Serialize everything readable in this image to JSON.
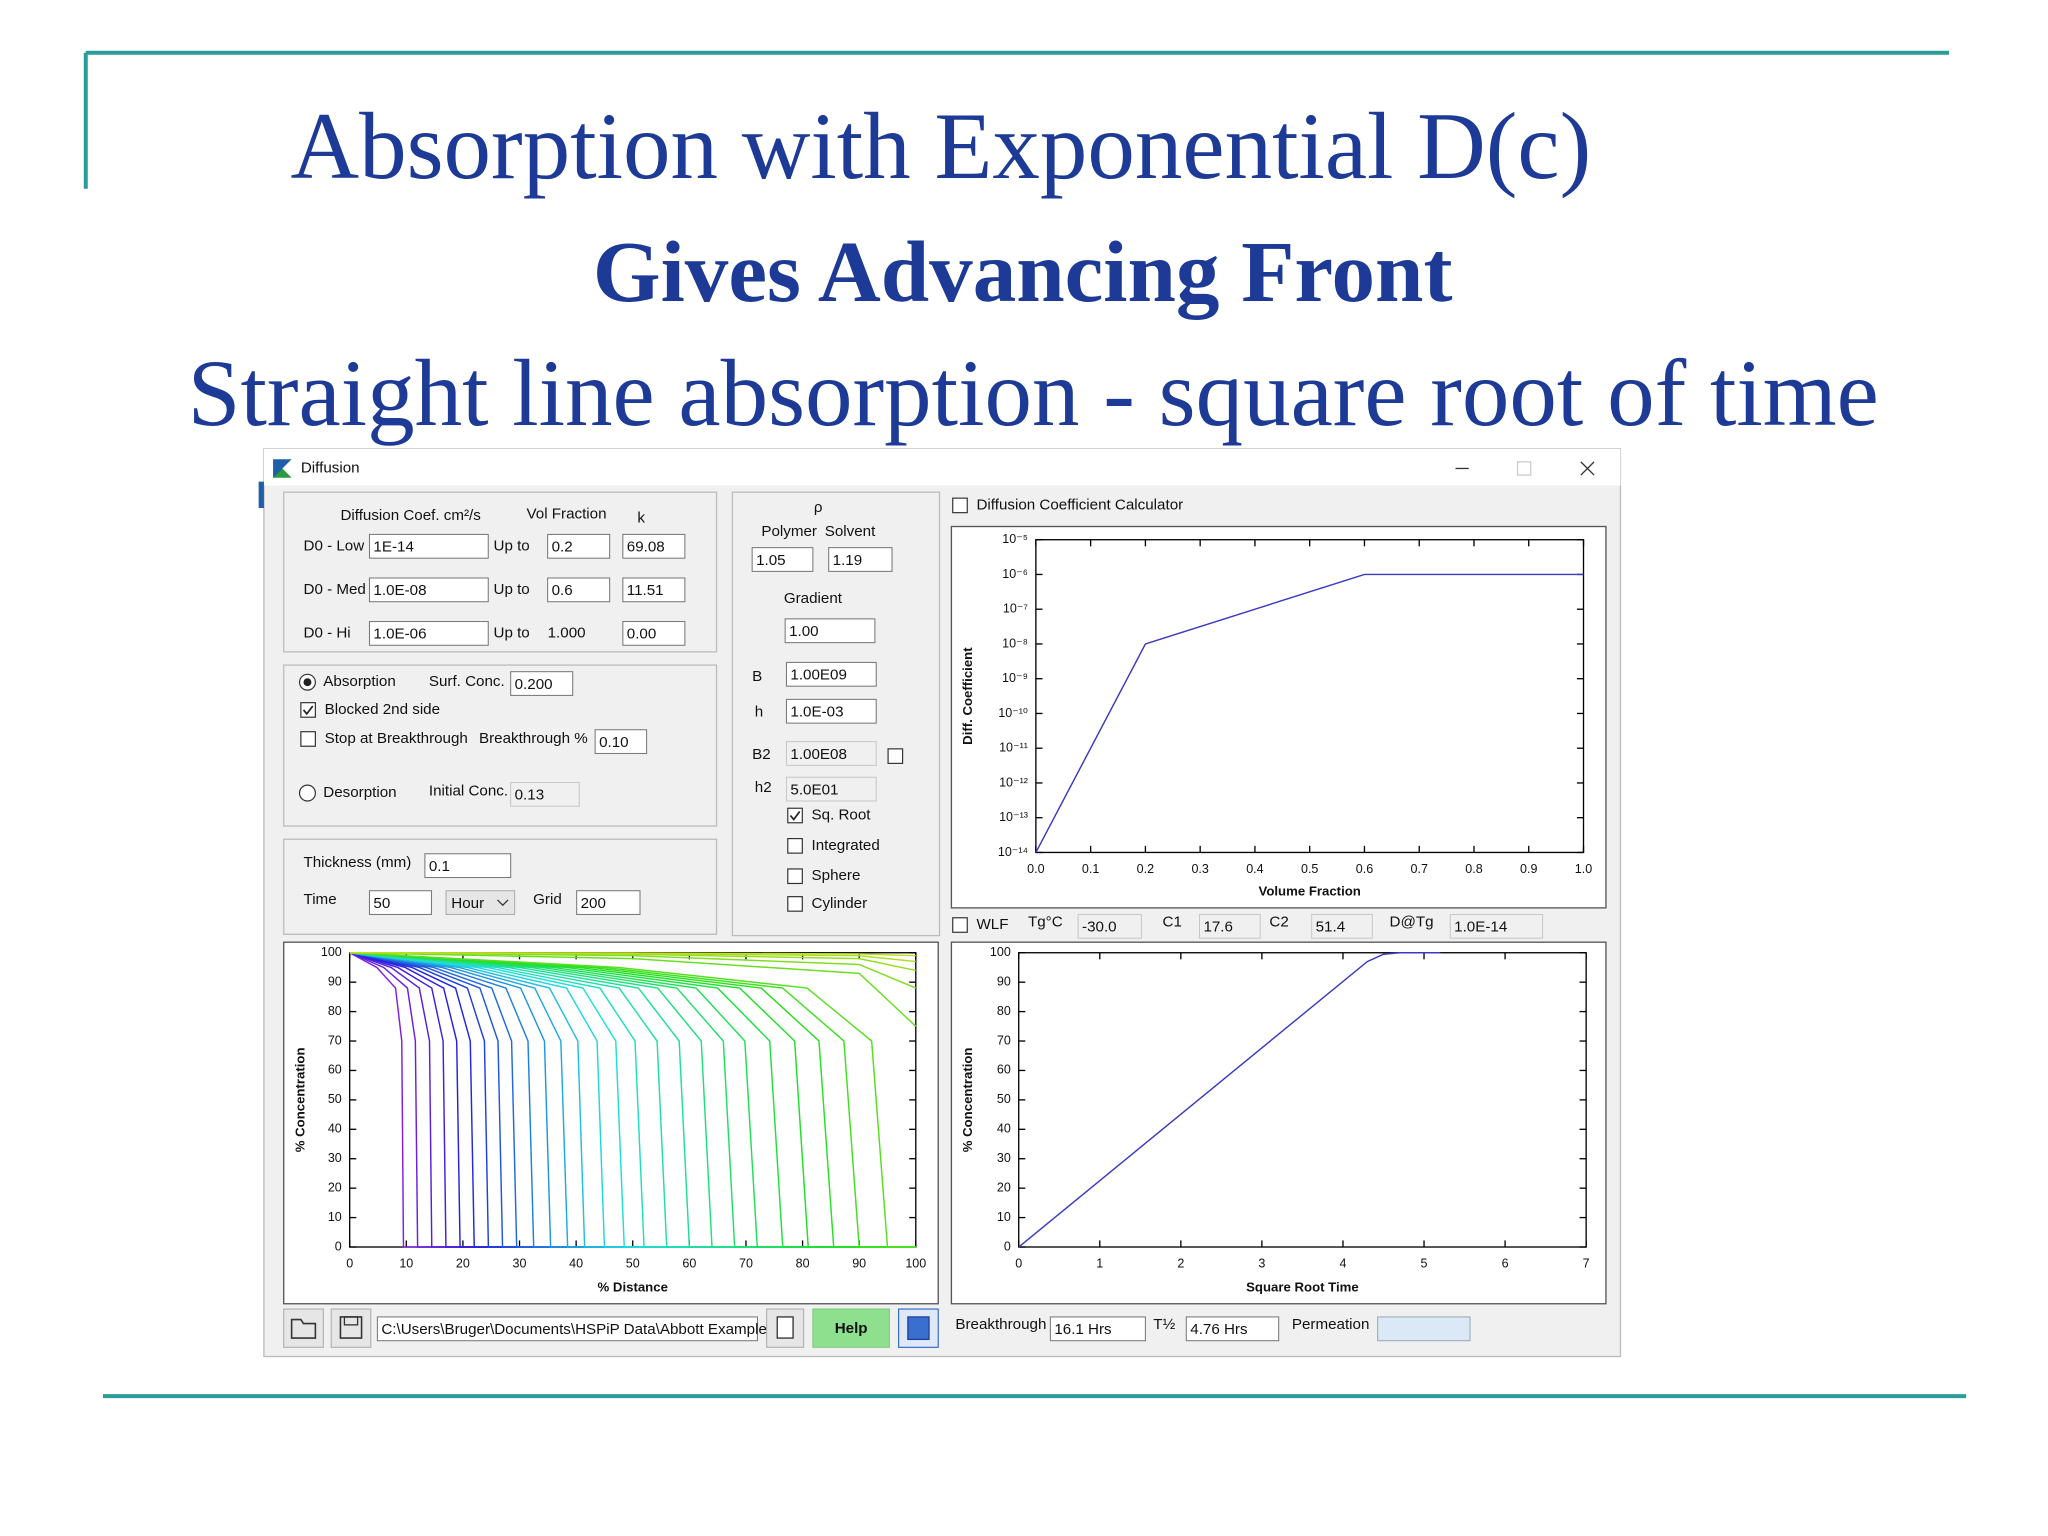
{
  "slide": {
    "title": "Absorption with Exponential D(c)",
    "subtitle": "Gives Advancing Front",
    "caption": "Straight line absorption - square root of time"
  },
  "window": {
    "title": "Diffusion",
    "coefficients": {
      "header_d": "Diffusion Coef. cm²/s",
      "header_vf": "Vol Fraction",
      "header_k": "k",
      "rows": [
        {
          "label": "D0 - Low",
          "d": "1E-14",
          "up_to": "Up to",
          "vf": "0.2",
          "k": "69.08"
        },
        {
          "label": "D0 - Med",
          "d": "1.0E-08",
          "up_to": "Up to",
          "vf": "0.6",
          "k": "11.51"
        },
        {
          "label": "D0 - Hi",
          "d": "1.0E-06",
          "up_to": "Up to",
          "vf": "1.000",
          "k": "0.00"
        }
      ]
    },
    "mode": {
      "absorption": "Absorption",
      "surf_conc_label": "Surf. Conc.",
      "surf_conc": "0.200",
      "blocked": "Blocked 2nd side",
      "stop": "Stop at Breakthrough",
      "breakthrough_label": "Breakthrough %",
      "breakthrough": "0.10",
      "desorption": "Desorption",
      "initial_conc_label": "Initial Conc.",
      "initial_conc": "0.13"
    },
    "run": {
      "thickness_label": "Thickness (mm)",
      "thickness": "0.1",
      "time_label": "Time",
      "time": "50",
      "time_unit": "Hour",
      "grid_label": "Grid",
      "grid": "200"
    },
    "density": {
      "rho": "ρ",
      "polymer_label": "Polymer",
      "solvent_label": "Solvent",
      "polymer": "1.05",
      "solvent": "1.19",
      "gradient_label": "Gradient",
      "gradient": "1.00",
      "b_label": "B",
      "b": "1.00E09",
      "h_label": "h",
      "h": "1.0E-03",
      "b2_label": "B2",
      "b2": "1.00E08",
      "h2_label": "h2",
      "h2": "5.0E01",
      "sq_root": "Sq. Root",
      "integrated": "Integrated",
      "sphere": "Sphere",
      "cylinder": "Cylinder"
    },
    "calculator": "Diffusion Coefficient Calculator",
    "wlf": {
      "label": "WLF",
      "tg_label": "Tg°C",
      "tg": "-30.0",
      "c1_label": "C1",
      "c1": "17.6",
      "c2_label": "C2",
      "c2": "51.4",
      "dtg_label": "D@Tg",
      "dtg": "1.0E-14"
    },
    "footer": {
      "path": "C:\\Users\\Bruger\\Documents\\HSPiP Data\\Abbott Example",
      "help": "Help",
      "breakthrough_label": "Breakthrough",
      "breakthrough": "16.1 Hrs",
      "half_label": "T½",
      "half": "4.76 Hrs",
      "permeation_label": "Permeation"
    }
  },
  "chart_data": [
    {
      "type": "line",
      "x_label": "Volume Fraction",
      "y_label": "Diff. Coefficient",
      "log_y": true,
      "x": [
        0,
        0.2,
        0.6,
        1.0
      ],
      "series": [
        {
          "color": "#3a3ac0",
          "values": [
            1e-14,
            1e-08,
            1e-06,
            1e-06
          ]
        }
      ],
      "xlim": [
        0,
        1
      ],
      "ylim": [
        1e-14,
        1e-05
      ],
      "xticks": [
        {
          "value": 0,
          "label": "0.0"
        },
        0.1,
        0.2,
        0.3,
        0.4,
        0.5,
        0.6,
        0.7,
        0.8,
        0.9,
        {
          "value": 1,
          "label": "1.0"
        }
      ],
      "yticks": [
        {
          "value": 1e-14,
          "label": "10⁻¹⁴"
        },
        {
          "value": 1e-13,
          "label": "10⁻¹³"
        },
        {
          "value": 1e-12,
          "label": "10⁻¹²"
        },
        {
          "value": 1e-11,
          "label": "10⁻¹¹"
        },
        {
          "value": 1e-10,
          "label": "10⁻¹⁰"
        },
        {
          "value": 1e-09,
          "label": "10⁻⁹"
        },
        {
          "value": 1e-08,
          "label": "10⁻⁸"
        },
        {
          "value": 1e-07,
          "label": "10⁻⁷"
        },
        {
          "value": 1e-06,
          "label": "10⁻⁶"
        },
        {
          "value": 1e-05,
          "label": "10⁻⁵"
        }
      ]
    },
    {
      "type": "line",
      "x_label": "% Distance",
      "y_label": "% Concentration",
      "xlim": [
        0,
        100
      ],
      "ylim": [
        0,
        100
      ],
      "xticks": [
        0,
        10,
        20,
        30,
        40,
        50,
        60,
        70,
        80,
        90,
        100
      ],
      "yticks": [
        0,
        10,
        20,
        30,
        40,
        50,
        60,
        70,
        80,
        90,
        100
      ],
      "series": [
        {
          "color": "hsl(270,75%,50%)",
          "x": [
            0,
            4.8,
            8.1,
            9.2,
            9.5,
            100
          ],
          "values": [
            100,
            95,
            88,
            70,
            0,
            0
          ]
        },
        {
          "color": "hsl(263,75%,50%)",
          "x": [
            0,
            6,
            10.2,
            11.6,
            12,
            100
          ],
          "values": [
            100,
            95,
            88,
            70,
            0,
            0
          ]
        },
        {
          "color": "hsl(257,75%,50%)",
          "x": [
            0,
            7.3,
            12.3,
            14.1,
            14.5,
            100
          ],
          "values": [
            100,
            95,
            88,
            70,
            0,
            0
          ]
        },
        {
          "color": "hsl(250,75%,50%)",
          "x": [
            0,
            8.5,
            14.5,
            16.5,
            17,
            100
          ],
          "values": [
            100,
            95,
            88,
            70,
            0,
            0
          ]
        },
        {
          "color": "hsl(243,75%,50%)",
          "x": [
            0,
            9.8,
            16.6,
            18.9,
            19.5,
            100
          ],
          "values": [
            100,
            95,
            88,
            70,
            0,
            0
          ]
        },
        {
          "color": "hsl(237,75%,50%)",
          "x": [
            0,
            11,
            18.7,
            21.3,
            22,
            100
          ],
          "values": [
            100,
            95,
            88,
            70,
            0,
            0
          ]
        },
        {
          "color": "hsl(230,75%,50%)",
          "x": [
            0,
            12.3,
            20.8,
            23.8,
            24.5,
            100
          ],
          "values": [
            100,
            95,
            88,
            70,
            0,
            0
          ]
        },
        {
          "color": "hsl(223,75%,50%)",
          "x": [
            0,
            13.5,
            23,
            26.2,
            27,
            100
          ],
          "values": [
            100,
            95,
            88,
            70,
            0,
            0
          ]
        },
        {
          "color": "hsl(217,75%,50%)",
          "x": [
            0,
            14.8,
            25.1,
            28.6,
            29.5,
            100
          ],
          "values": [
            100,
            95,
            88,
            70,
            0,
            0
          ]
        },
        {
          "color": "hsl(210,75%,50%)",
          "x": [
            0,
            16.3,
            27.6,
            31.5,
            32.5,
            100
          ],
          "values": [
            100,
            95,
            88,
            70,
            0,
            0
          ]
        },
        {
          "color": "hsl(203,75%,50%)",
          "x": [
            0,
            17.8,
            30.2,
            34.4,
            35.5,
            100
          ],
          "values": [
            100,
            95,
            88,
            70,
            0,
            0
          ]
        },
        {
          "color": "hsl(197,75%,50%)",
          "x": [
            0,
            19.3,
            32.7,
            37.3,
            38.5,
            100
          ],
          "values": [
            100,
            95,
            88,
            70,
            0,
            0
          ]
        },
        {
          "color": "hsl(190,75%,50%)",
          "x": [
            0,
            20.8,
            35.3,
            40.3,
            41.5,
            100
          ],
          "values": [
            100,
            95,
            88,
            70,
            0,
            0
          ]
        },
        {
          "color": "hsl(183,75%,50%)",
          "x": [
            0,
            22.5,
            38.3,
            43.7,
            45,
            100
          ],
          "values": [
            100,
            95,
            88,
            70,
            0,
            0
          ]
        },
        {
          "color": "hsl(177,75%,50%)",
          "x": [
            0,
            24.3,
            41.2,
            47,
            48.5,
            100
          ],
          "values": [
            100,
            95,
            88,
            70,
            0,
            0
          ]
        },
        {
          "color": "hsl(170,75%,50%)",
          "x": [
            0,
            26,
            44.2,
            50.4,
            52,
            100
          ],
          "values": [
            100,
            95,
            88,
            70,
            0,
            0
          ]
        },
        {
          "color": "hsl(163,75%,50%)",
          "x": [
            0,
            28,
            47.6,
            54.3,
            56,
            100
          ],
          "values": [
            100,
            95,
            88,
            70,
            0,
            0
          ]
        },
        {
          "color": "hsl(157,75%,50%)",
          "x": [
            0,
            30,
            51,
            58.2,
            60,
            100
          ],
          "values": [
            100,
            95,
            88,
            70,
            0,
            0
          ]
        },
        {
          "color": "hsl(150,75%,50%)",
          "x": [
            0,
            32,
            54.4,
            62.1,
            64,
            100
          ],
          "values": [
            100,
            95,
            88,
            70,
            0,
            0
          ]
        },
        {
          "color": "hsl(143,75%,50%)",
          "x": [
            0,
            34,
            57.8,
            66,
            68,
            100
          ],
          "values": [
            100,
            95,
            88,
            70,
            0,
            0
          ]
        },
        {
          "color": "hsl(137,75%,50%)",
          "x": [
            0,
            36,
            61.2,
            69.8,
            72,
            100
          ],
          "values": [
            100,
            95,
            88,
            70,
            0,
            0
          ]
        },
        {
          "color": "hsl(130,75%,50%)",
          "x": [
            0,
            38.3,
            65,
            74.2,
            76.5,
            100
          ],
          "values": [
            100,
            95,
            88,
            70,
            0,
            0
          ]
        },
        {
          "color": "hsl(123,75%,50%)",
          "x": [
            0,
            40.5,
            68.9,
            78.6,
            81,
            100
          ],
          "values": [
            100,
            95,
            88,
            70,
            0,
            0
          ]
        },
        {
          "color": "hsl(117,75%,50%)",
          "x": [
            0,
            42.8,
            72.7,
            82.9,
            85.5,
            100
          ],
          "values": [
            100,
            95,
            88,
            70,
            0,
            0
          ]
        },
        {
          "color": "hsl(110,75%,50%)",
          "x": [
            0,
            45,
            76.5,
            87.3,
            90,
            100
          ],
          "values": [
            100,
            95,
            88,
            70,
            0,
            0
          ]
        },
        {
          "color": "hsl(103,75%,50%)",
          "x": [
            0,
            47.5,
            80.8,
            92.2,
            95,
            100
          ],
          "values": [
            100,
            95,
            88,
            70,
            0,
            0
          ]
        },
        {
          "color": "hsl(97,75%,50%)",
          "x": [
            0,
            50,
            90,
            100
          ],
          "values": [
            100,
            98,
            93,
            75
          ]
        },
        {
          "color": "hsl(90,75%,50%)",
          "x": [
            0,
            50,
            90,
            100
          ],
          "values": [
            100,
            99,
            96,
            88
          ]
        },
        {
          "color": "hsl(83,75%,50%)",
          "x": [
            0,
            50,
            90,
            100
          ],
          "values": [
            100,
            99.5,
            98,
            94
          ]
        },
        {
          "color": "hsl(77,75%,50%)",
          "x": [
            0,
            50,
            90,
            100
          ],
          "values": [
            100,
            99.7,
            99,
            97
          ]
        },
        {
          "color": "hsl(70,75%,50%)",
          "x": [
            0,
            50,
            90,
            100
          ],
          "values": [
            100,
            99.9,
            99.6,
            99
          ]
        }
      ]
    },
    {
      "type": "line",
      "x_label": "Square Root Time",
      "y_label": "% Concentration",
      "x": [
        0,
        4.3,
        4.5,
        4.7,
        5.2
      ],
      "series": [
        {
          "color": "#3a3ac0",
          "values": [
            0,
            97,
            99.5,
            100,
            100
          ]
        }
      ],
      "xlim": [
        0,
        7
      ],
      "ylim": [
        0,
        100
      ],
      "xticks": [
        0,
        1,
        2,
        3,
        4,
        5,
        6,
        7
      ],
      "yticks": [
        0,
        10,
        20,
        30,
        40,
        50,
        60,
        70,
        80,
        90,
        100
      ]
    }
  ]
}
